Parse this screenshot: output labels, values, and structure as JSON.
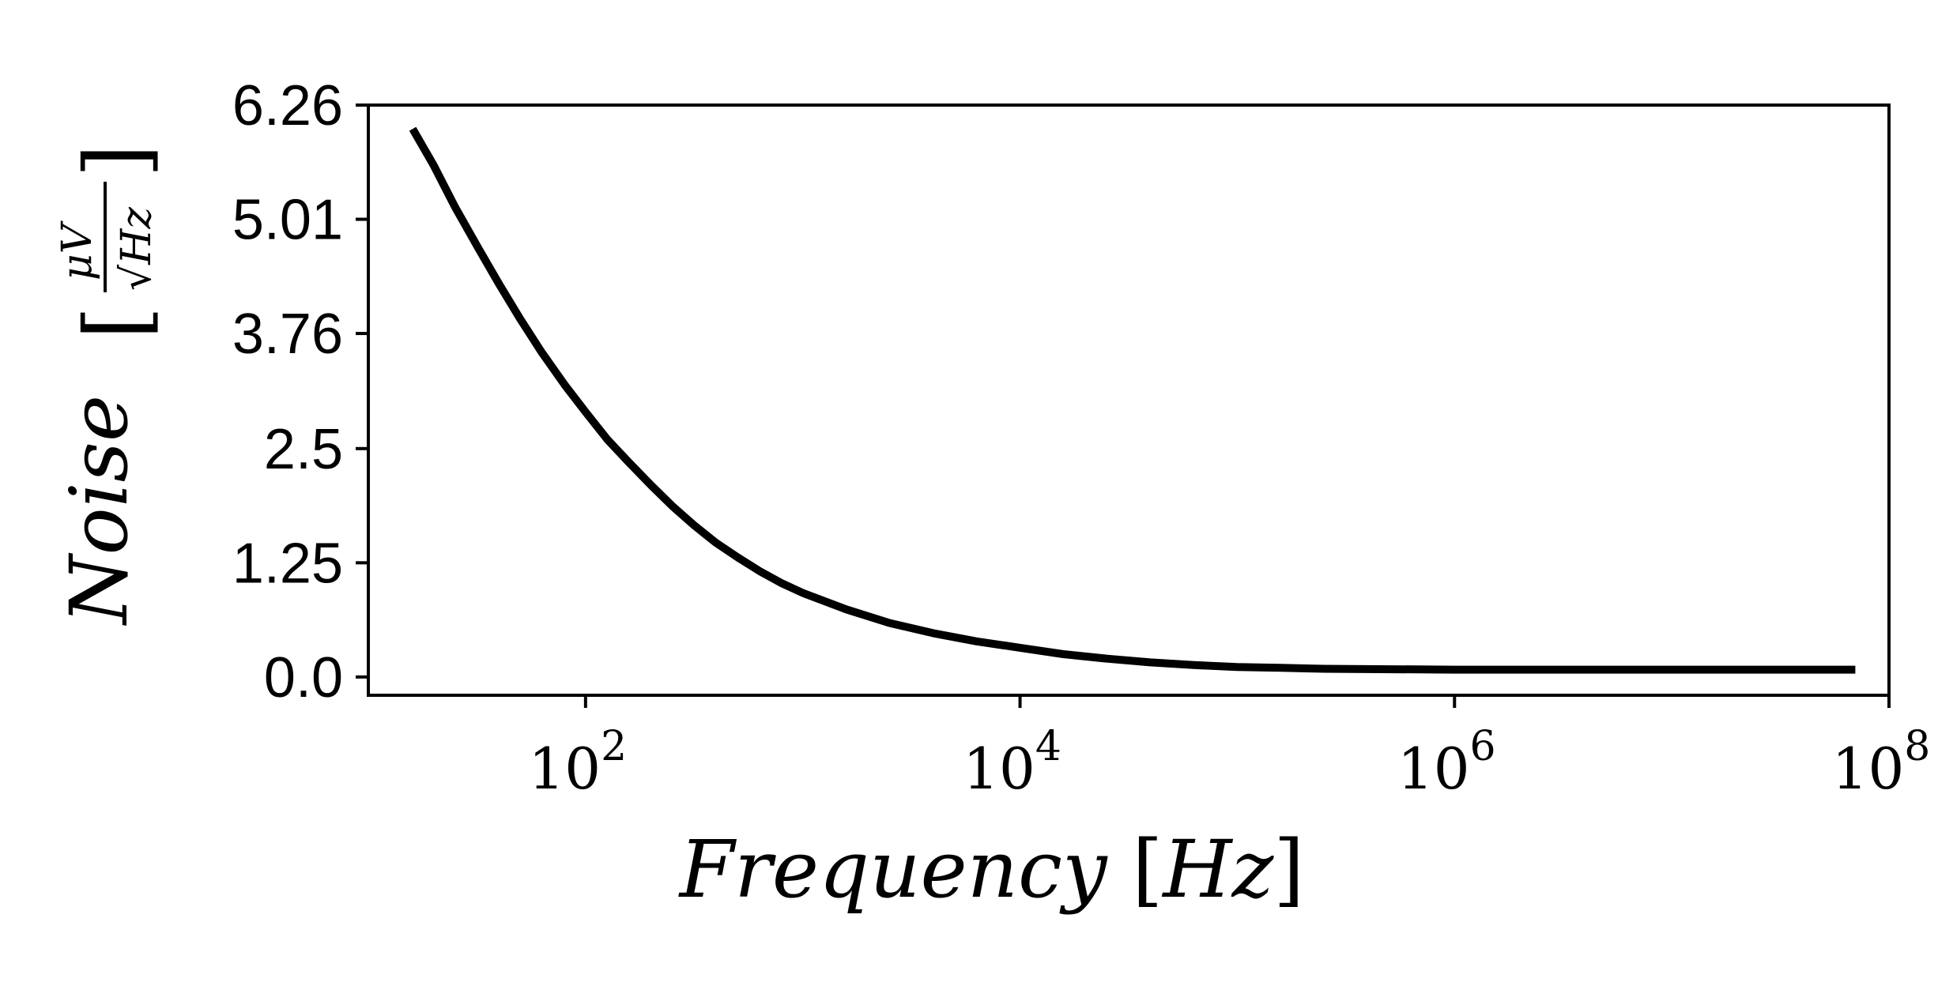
{
  "chart_data": {
    "type": "line",
    "title": "",
    "xscale": "log",
    "xlabel": "Frequency [Hz]",
    "ylabel": "Noise [μV/√Hz]",
    "xlim": [
      10,
      100000000
    ],
    "ylim": [
      -0.2,
      6.26
    ],
    "grid": false,
    "x_ticks": [
      {
        "value": 100,
        "label_base": "10",
        "label_exp": "2"
      },
      {
        "value": 10000,
        "label_base": "10",
        "label_exp": "4"
      },
      {
        "value": 1000000,
        "label_base": "10",
        "label_exp": "6"
      },
      {
        "value": 100000000,
        "label_base": "10",
        "label_exp": "8"
      }
    ],
    "y_ticks": [
      {
        "value": 0.0,
        "label": "0.0"
      },
      {
        "value": 1.25,
        "label": "1.25"
      },
      {
        "value": 2.5,
        "label": "2.5"
      },
      {
        "value": 3.76,
        "label": "3.76"
      },
      {
        "value": 5.01,
        "label": "5.01"
      },
      {
        "value": 6.26,
        "label": "6.26"
      }
    ],
    "series": [
      {
        "color": "#000000",
        "x": [
          16,
          20,
          25,
          32,
          40,
          50,
          63,
          80,
          100,
          126,
          158,
          200,
          251,
          316,
          398,
          501,
          631,
          794,
          1000,
          1585,
          2512,
          3981,
          6310,
          10000,
          15849,
          25119,
          39811,
          63096,
          100000,
          158489,
          251189,
          1000000,
          10000000,
          70000000
        ],
        "y": [
          6.0,
          5.6,
          5.15,
          4.7,
          4.3,
          3.92,
          3.55,
          3.2,
          2.9,
          2.6,
          2.35,
          2.1,
          1.87,
          1.66,
          1.47,
          1.31,
          1.16,
          1.03,
          0.92,
          0.74,
          0.59,
          0.48,
          0.39,
          0.32,
          0.25,
          0.2,
          0.16,
          0.13,
          0.11,
          0.1,
          0.09,
          0.08,
          0.08,
          0.08
        ]
      }
    ]
  }
}
